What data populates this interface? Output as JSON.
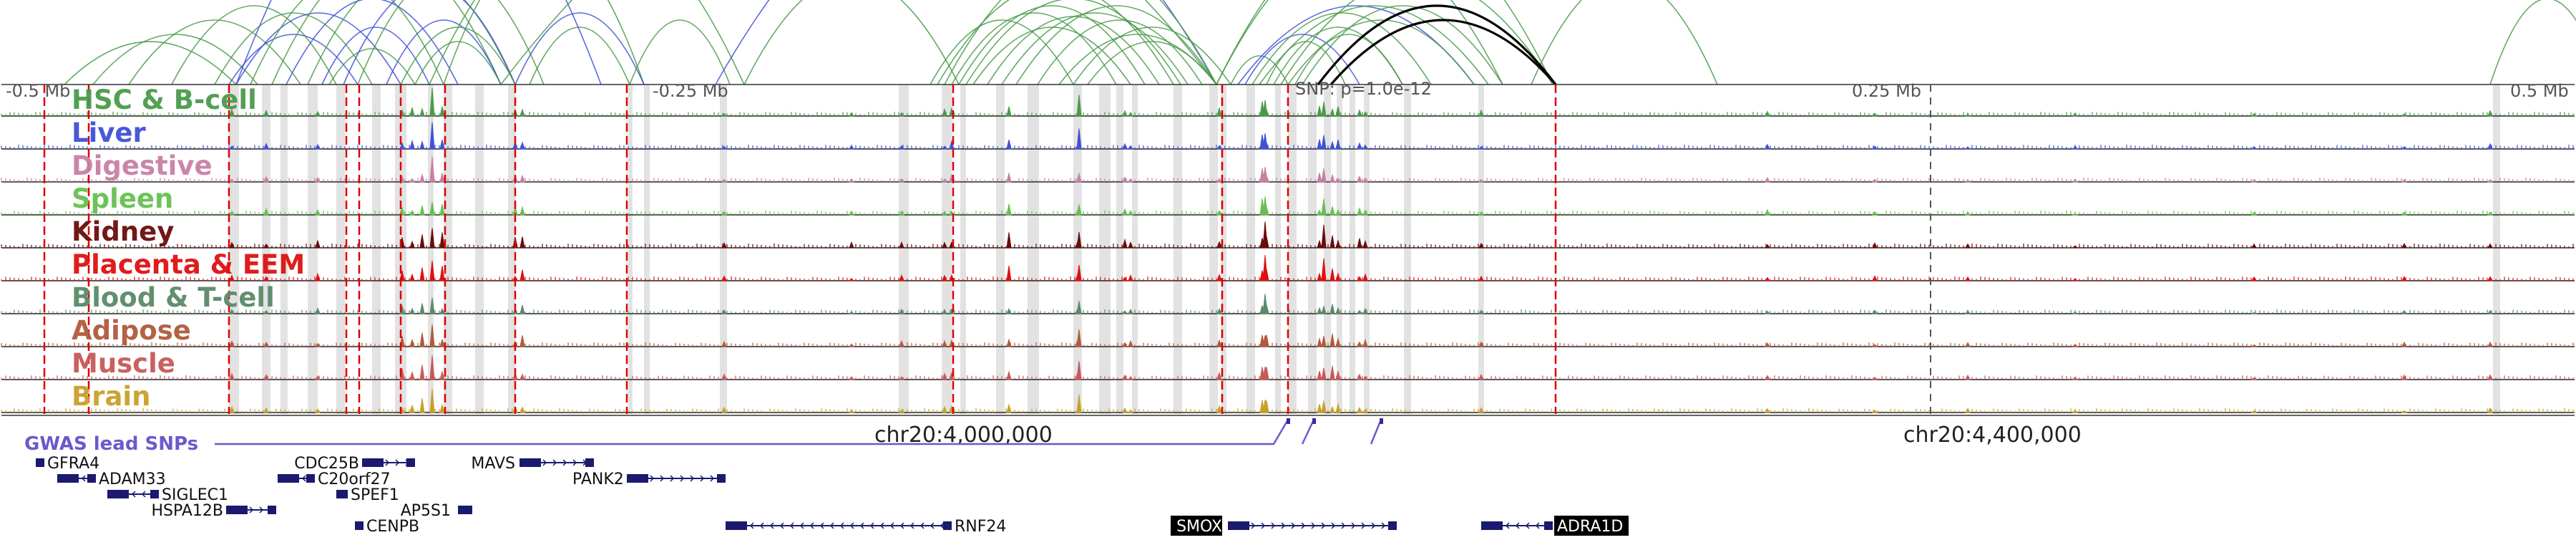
{
  "browser": {
    "region": {
      "chrom": "chr20",
      "start_label": "-0.5 Mb",
      "end_label": "0.5 Mb"
    },
    "axis": {
      "scale_labels": [
        "-0.5 Mb",
        "-0.25 Mb",
        "0.25 Mb",
        "0.5 Mb"
      ],
      "snp_label": "SNP: p=1.0e-12",
      "coordinate_labels": [
        "chr20:4,000,000",
        "chr20:4,400,000"
      ]
    },
    "tracks": [
      {
        "label": "HSC & B-cell",
        "color": "#4a9a4a"
      },
      {
        "label": "Liver",
        "color": "#4050d8"
      },
      {
        "label": "Digestive",
        "color": "#c87fa6"
      },
      {
        "label": "Spleen",
        "color": "#66c050"
      },
      {
        "label": "Kidney",
        "color": "#6a0c0c"
      },
      {
        "label": "Placenta & EEM",
        "color": "#e01010"
      },
      {
        "label": "Blood & T-cell",
        "color": "#5a8a68"
      },
      {
        "label": "Adipose",
        "color": "#b05a3a"
      },
      {
        "label": "Muscle",
        "color": "#c85858"
      },
      {
        "label": "Brain",
        "color": "#c8a02a"
      }
    ],
    "gwas": {
      "label": "GWAS lead SNPs",
      "color": "#6a5acd"
    },
    "genes": [
      {
        "name": "GFRA4",
        "highlighted": false
      },
      {
        "name": "ADAM33",
        "highlighted": false
      },
      {
        "name": "SIGLEC1",
        "highlighted": false
      },
      {
        "name": "HSPA12B",
        "highlighted": false
      },
      {
        "name": "CDC25B",
        "highlighted": false
      },
      {
        "name": "C20orf27",
        "highlighted": false
      },
      {
        "name": "SPEF1",
        "highlighted": false
      },
      {
        "name": "AP5S1",
        "highlighted": false
      },
      {
        "name": "CENPB",
        "highlighted": false
      },
      {
        "name": "MAVS",
        "highlighted": false
      },
      {
        "name": "PANK2",
        "highlighted": false
      },
      {
        "name": "RNF24",
        "highlighted": false
      },
      {
        "name": "SMOX",
        "highlighted": true
      },
      {
        "name": "ADRA1D",
        "highlighted": true
      }
    ],
    "colors": {
      "loop_green": "#4a9a4a",
      "loop_blue": "#4050d8",
      "loop_black": "#000000",
      "peak_red": "#e00000",
      "highlight_gray": "#d8d8d8",
      "gene_navy": "#1a1a6e"
    }
  }
}
